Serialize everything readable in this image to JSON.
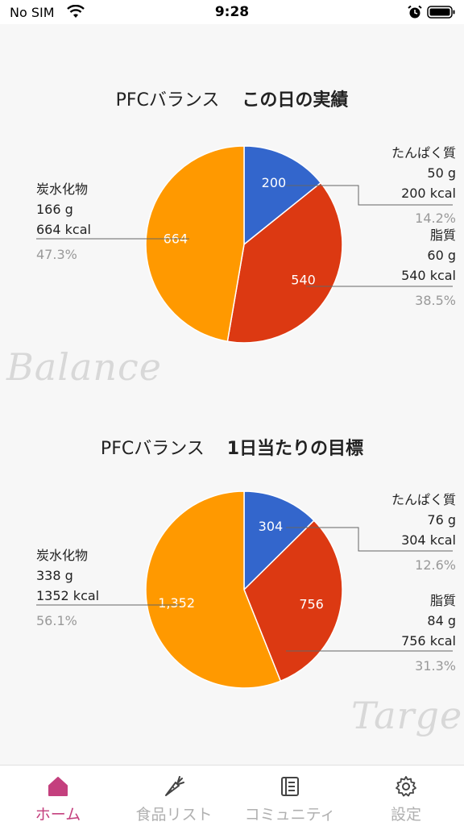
{
  "status_bar": {
    "carrier": "No SIM",
    "time": "9:28"
  },
  "daily_actual": {
    "title_prefix": "PFCバランス",
    "title_main": "この日の実績",
    "deco_text": "Balance",
    "protein": {
      "name": "たんぱく質",
      "grams": "50 g",
      "kcal": "200 kcal",
      "percent": "14.2%",
      "slice_label": "200"
    },
    "fat": {
      "name": "脂質",
      "grams": "60 g",
      "kcal": "540 kcal",
      "percent": "38.5%",
      "slice_label": "540"
    },
    "carb": {
      "name": "炭水化物",
      "grams": "166 g",
      "kcal": "664 kcal",
      "percent": "47.3%",
      "slice_label": "664"
    }
  },
  "daily_target": {
    "title_prefix": "PFCバランス",
    "title_main": "1日当たりの目標",
    "deco_text": "Target",
    "protein": {
      "name": "たんぱく質",
      "grams": "76 g",
      "kcal": "304 kcal",
      "percent": "12.6%",
      "slice_label": "304"
    },
    "fat": {
      "name": "脂質",
      "grams": "84 g",
      "kcal": "756 kcal",
      "percent": "31.3%",
      "slice_label": "756"
    },
    "carb": {
      "name": "炭水化物",
      "grams": "338 g",
      "kcal": "1352 kcal",
      "percent": "56.1%",
      "slice_label": "1,352"
    }
  },
  "chart_data": [
    {
      "type": "pie",
      "title": "PFCバランス この日の実績",
      "categories": [
        "たんぱく質",
        "脂質",
        "炭水化物"
      ],
      "values": [
        200,
        540,
        664
      ],
      "colors": [
        "#3366cc",
        "#dc3912",
        "#ff9900"
      ]
    },
    {
      "type": "pie",
      "title": "PFCバランス 1日当たりの目標",
      "categories": [
        "たんぱく質",
        "脂質",
        "炭水化物"
      ],
      "values": [
        304,
        756,
        1352
      ],
      "colors": [
        "#3366cc",
        "#dc3912",
        "#ff9900"
      ]
    }
  ],
  "tabs": [
    {
      "label": "ホーム",
      "icon": "home-icon",
      "active": true
    },
    {
      "label": "食品リスト",
      "icon": "carrot-icon",
      "active": false
    },
    {
      "label": "コミュニティ",
      "icon": "list-icon",
      "active": false
    },
    {
      "label": "設定",
      "icon": "gear-icon",
      "active": false
    }
  ],
  "colors": {
    "accent": "#c4407e",
    "protein": "#3366cc",
    "fat": "#dc3912",
    "carb": "#ff9900"
  }
}
